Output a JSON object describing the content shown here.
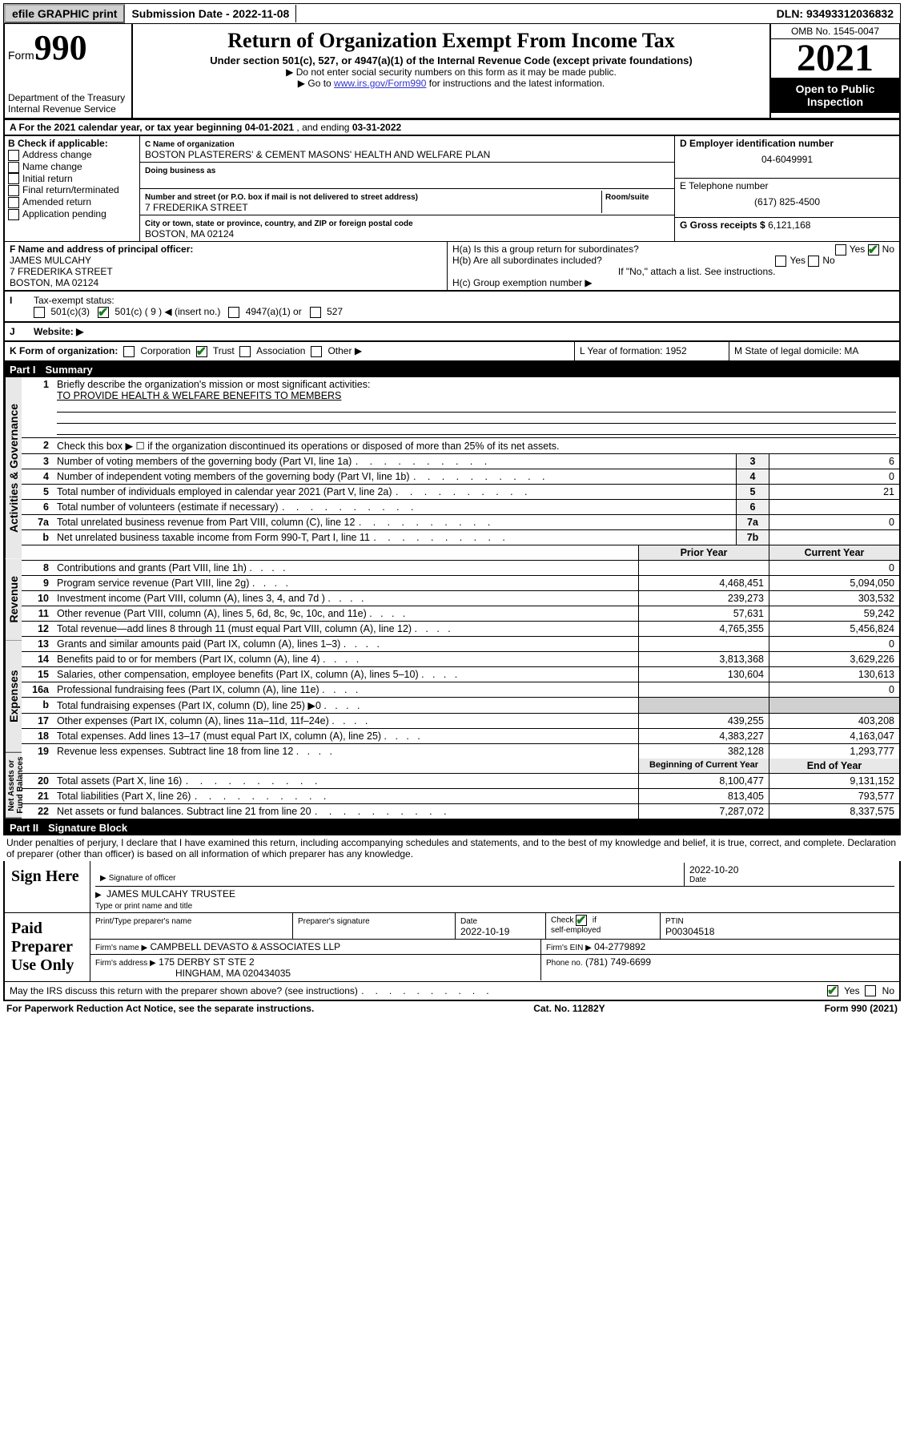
{
  "topBar": {
    "efile": "efile GRAPHIC print",
    "subDateLbl": "Submission Date -",
    "subDate": "2022-11-08",
    "dlnLbl": "DLN:",
    "dln": "93493312036832"
  },
  "header": {
    "formWord": "Form",
    "formNum": "990",
    "dept": "Department of the Treasury",
    "irs": "Internal Revenue Service",
    "title": "Return of Organization Exempt From Income Tax",
    "sub": "Under section 501(c), 527, or 4947(a)(1) of the Internal Revenue Code (except private foundations)",
    "note1": "▶ Do not enter social security numbers on this form as it may be made public.",
    "note2a": "▶ Go to ",
    "note2link": "www.irs.gov/Form990",
    "note2b": " for instructions and the latest information.",
    "omb": "OMB No. 1545-0047",
    "year": "2021",
    "open": "Open to Public Inspection"
  },
  "rowA": {
    "label": "A For the 2021 calendar year, or tax year beginning ",
    "begin": "04-01-2021",
    "mid": " , and ending ",
    "end": "03-31-2022"
  },
  "boxB": {
    "header": "B Check if applicable:",
    "opts": [
      "Address change",
      "Name change",
      "Initial return",
      "Final return/terminated",
      "Amended return",
      "Application pending"
    ]
  },
  "boxC": {
    "nameLbl": "C Name of organization",
    "name": "BOSTON PLASTERERS' & CEMENT MASONS' HEALTH AND WELFARE PLAN",
    "dbaLbl": "Doing business as",
    "dba": "",
    "streetLbl": "Number and street (or P.O. box if mail is not delivered to street address)",
    "roomLbl": "Room/suite",
    "street": "7 FREDERIKA STREET",
    "cityLbl": "City or town, state or province, country, and ZIP or foreign postal code",
    "city": "BOSTON, MA  02124"
  },
  "boxD": {
    "lbl": "D Employer identification number",
    "val": "04-6049991"
  },
  "boxE": {
    "lbl": "E Telephone number",
    "val": "(617) 825-4500"
  },
  "boxG": {
    "lbl": "G Gross receipts $",
    "val": "6,121,168"
  },
  "boxF": {
    "lbl": "F Name and address of principal officer:",
    "name": "JAMES MULCAHY",
    "addr1": "7 FREDERIKA STREET",
    "addr2": "BOSTON, MA  02124"
  },
  "boxH": {
    "ha": "H(a)  Is this a group return for subordinates?",
    "hb": "H(b)  Are all subordinates included?",
    "hnote": "If \"No,\" attach a list. See instructions.",
    "hc": "H(c)  Group exemption number ▶",
    "yes": "Yes",
    "no": "No"
  },
  "rowI": {
    "lbl": "Tax-exempt status:",
    "opts": [
      "501(c)(3)",
      "501(c) ( 9 ) ◀ (insert no.)",
      "4947(a)(1) or",
      "527"
    ],
    "checked": 1
  },
  "rowJ": {
    "lbl": "Website: ▶",
    "val": ""
  },
  "rowK": {
    "lbl": "K Form of organization:",
    "opts": [
      "Corporation",
      "Trust",
      "Association",
      "Other ▶"
    ],
    "checked": 1,
    "l": "L Year of formation: 1952",
    "m": "M State of legal domicile: MA"
  },
  "part1": {
    "hdr": "Part I",
    "title": "Summary",
    "sideLabels": [
      "Activities & Governance",
      "Revenue",
      "Expenses",
      "Net Assets or Fund Balances"
    ],
    "q1": "Briefly describe the organization's mission or most significant activities:",
    "q1ans": "TO PROVIDE HEALTH & WELFARE BENEFITS TO MEMBERS",
    "q2": "Check this box ▶ ☐  if the organization discontinued its operations or disposed of more than 25% of its net assets.",
    "q3": "Number of voting members of the governing body (Part VI, line 1a)",
    "q4": "Number of independent voting members of the governing body (Part VI, line 1b)",
    "q5": "Total number of individuals employed in calendar year 2021 (Part V, line 2a)",
    "q6": "Total number of volunteers (estimate if necessary)",
    "q7a": "Total unrelated business revenue from Part VIII, column (C), line 12",
    "q7b": "Net unrelated business taxable income from Form 990-T, Part I, line 11",
    "v3": "6",
    "v4": "0",
    "v5": "21",
    "v6": "",
    "v7a": "0",
    "v7b": "",
    "priorHdr": "Prior Year",
    "curHdr": "Current Year",
    "rows2col": [
      {
        "n": "8",
        "t": "Contributions and grants (Part VIII, line 1h)",
        "p": "",
        "c": "0"
      },
      {
        "n": "9",
        "t": "Program service revenue (Part VIII, line 2g)",
        "p": "4,468,451",
        "c": "5,094,050"
      },
      {
        "n": "10",
        "t": "Investment income (Part VIII, column (A), lines 3, 4, and 7d )",
        "p": "239,273",
        "c": "303,532"
      },
      {
        "n": "11",
        "t": "Other revenue (Part VIII, column (A), lines 5, 6d, 8c, 9c, 10c, and 11e)",
        "p": "57,631",
        "c": "59,242"
      },
      {
        "n": "12",
        "t": "Total revenue—add lines 8 through 11 (must equal Part VIII, column (A), line 12)",
        "p": "4,765,355",
        "c": "5,456,824"
      },
      {
        "n": "13",
        "t": "Grants and similar amounts paid (Part IX, column (A), lines 1–3)",
        "p": "",
        "c": "0"
      },
      {
        "n": "14",
        "t": "Benefits paid to or for members (Part IX, column (A), line 4)",
        "p": "3,813,368",
        "c": "3,629,226"
      },
      {
        "n": "15",
        "t": "Salaries, other compensation, employee benefits (Part IX, column (A), lines 5–10)",
        "p": "130,604",
        "c": "130,613"
      },
      {
        "n": "16a",
        "t": "Professional fundraising fees (Part IX, column (A), line 11e)",
        "p": "",
        "c": "0"
      },
      {
        "n": "b",
        "t": "Total fundraising expenses (Part IX, column (D), line 25) ▶0",
        "p": "SHADE",
        "c": "SHADE"
      },
      {
        "n": "17",
        "t": "Other expenses (Part IX, column (A), lines 11a–11d, 11f–24e)",
        "p": "439,255",
        "c": "403,208"
      },
      {
        "n": "18",
        "t": "Total expenses. Add lines 13–17 (must equal Part IX, column (A), line 25)",
        "p": "4,383,227",
        "c": "4,163,047"
      },
      {
        "n": "19",
        "t": "Revenue less expenses. Subtract line 18 from line 12",
        "p": "382,128",
        "c": "1,293,777"
      }
    ],
    "begHdr": "Beginning of Current Year",
    "endHdr": "End of Year",
    "rowsBal": [
      {
        "n": "20",
        "t": "Total assets (Part X, line 16)",
        "p": "8,100,477",
        "c": "9,131,152"
      },
      {
        "n": "21",
        "t": "Total liabilities (Part X, line 26)",
        "p": "813,405",
        "c": "793,577"
      },
      {
        "n": "22",
        "t": "Net assets or fund balances. Subtract line 21 from line 20",
        "p": "7,287,072",
        "c": "8,337,575"
      }
    ]
  },
  "part2": {
    "hdr": "Part II",
    "title": "Signature Block",
    "decl": "Under penalties of perjury, I declare that I have examined this return, including accompanying schedules and statements, and to the best of my knowledge and belief, it is true, correct, and complete. Declaration of preparer (other than officer) is based on all information of which preparer has any knowledge.",
    "signHere": "Sign Here",
    "sigOff": "Signature of officer",
    "sigDate": "Date",
    "sigDateVal": "2022-10-20",
    "sigName": "JAMES MULCAHY TRUSTEE",
    "sigNameLbl": "Type or print name and title",
    "paid": "Paid Preparer Use Only",
    "ppName": "Print/Type preparer's name",
    "ppSig": "Preparer's signature",
    "ppDate": "Date",
    "ppDateVal": "2022-10-19",
    "ppCheck": "Check ☑ if self-employed",
    "ptinLbl": "PTIN",
    "ptin": "P00304518",
    "firmName": "Firm's name    ▶",
    "firmNameVal": "CAMPBELL DEVASTO & ASSOCIATES LLP",
    "firmEin": "Firm's EIN ▶",
    "firmEinVal": "04-2779892",
    "firmAddr": "Firm's address ▶",
    "firmAddrVal1": "175 DERBY ST STE 2",
    "firmAddrVal2": "HINGHAM, MA  020434035",
    "phone": "Phone no.",
    "phoneVal": "(781) 749-6699",
    "discuss": "May the IRS discuss this return with the preparer shown above? (see instructions)",
    "discussYes": "Yes",
    "discussNo": "No"
  },
  "footer": {
    "left": "For Paperwork Reduction Act Notice, see the separate instructions.",
    "mid": "Cat. No. 11282Y",
    "right": "Form 990 (2021)"
  }
}
